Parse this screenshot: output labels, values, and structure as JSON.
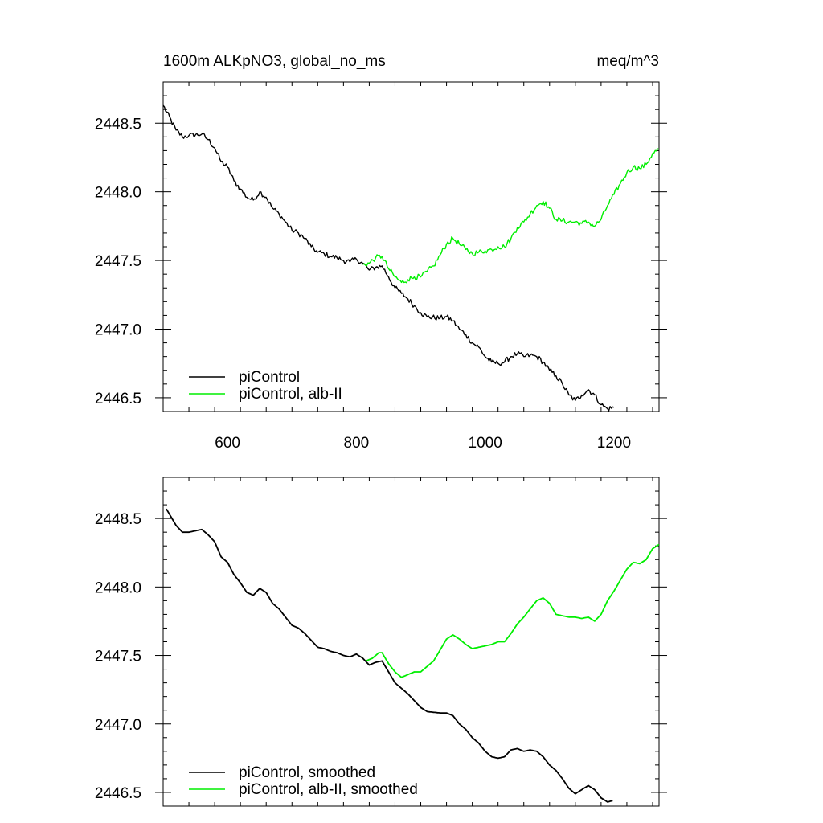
{
  "figure": {
    "title_left": "1600m ALKpNO3, global_no_ms",
    "title_right": "meq/m^3"
  },
  "colors": {
    "piControl": "#000000",
    "alb_II": "#00ee00"
  },
  "chart_data": [
    {
      "type": "line",
      "xlim": [
        500,
        1270
      ],
      "ylim": [
        2446.4,
        2448.8
      ],
      "xticks": [
        600,
        800,
        1000,
        1200
      ],
      "xtick_labels": [
        "600",
        "800",
        "1000",
        "1200"
      ],
      "yticks": [
        2446.5,
        2447.0,
        2447.5,
        2448.0,
        2448.5
      ],
      "ytick_labels": [
        "2446.5",
        "2447.0",
        "2447.5",
        "2448.0",
        "2448.5"
      ],
      "legend_position": "bottom-left",
      "series": [
        {
          "name": "piControl",
          "color": "#000000",
          "noise": 0.02,
          "points": [
            [
              500,
              2448.63
            ],
            [
              520,
              2448.45
            ],
            [
              530,
              2448.4
            ],
            [
              540,
              2448.41
            ],
            [
              560,
              2448.42
            ],
            [
              570,
              2448.38
            ],
            [
              580,
              2448.32
            ],
            [
              590,
              2448.22
            ],
            [
              600,
              2448.18
            ],
            [
              610,
              2448.08
            ],
            [
              620,
              2448.02
            ],
            [
              630,
              2447.96
            ],
            [
              640,
              2447.94
            ],
            [
              650,
              2448.0
            ],
            [
              660,
              2447.96
            ],
            [
              670,
              2447.88
            ],
            [
              680,
              2447.84
            ],
            [
              690,
              2447.78
            ],
            [
              700,
              2447.72
            ],
            [
              710,
              2447.7
            ],
            [
              720,
              2447.66
            ],
            [
              730,
              2447.6
            ],
            [
              740,
              2447.56
            ],
            [
              750,
              2447.55
            ],
            [
              760,
              2447.53
            ],
            [
              770,
              2447.52
            ],
            [
              780,
              2447.5
            ],
            [
              790,
              2447.49
            ],
            [
              800,
              2447.51
            ],
            [
              810,
              2447.48
            ],
            [
              820,
              2447.43
            ],
            [
              830,
              2447.45
            ],
            [
              840,
              2447.46
            ],
            [
              850,
              2447.38
            ],
            [
              860,
              2447.3
            ],
            [
              870,
              2447.26
            ],
            [
              880,
              2447.22
            ],
            [
              890,
              2447.17
            ],
            [
              900,
              2447.12
            ],
            [
              910,
              2447.09
            ],
            [
              930,
              2447.08
            ],
            [
              940,
              2447.09
            ],
            [
              950,
              2447.06
            ],
            [
              960,
              2447.0
            ],
            [
              970,
              2446.96
            ],
            [
              980,
              2446.9
            ],
            [
              990,
              2446.87
            ],
            [
              1000,
              2446.8
            ],
            [
              1010,
              2446.76
            ],
            [
              1020,
              2446.75
            ],
            [
              1030,
              2446.76
            ],
            [
              1040,
              2446.8
            ],
            [
              1050,
              2446.82
            ],
            [
              1060,
              2446.8
            ],
            [
              1070,
              2446.81
            ],
            [
              1080,
              2446.8
            ],
            [
              1090,
              2446.76
            ],
            [
              1100,
              2446.7
            ],
            [
              1110,
              2446.66
            ],
            [
              1120,
              2446.6
            ],
            [
              1130,
              2446.52
            ],
            [
              1140,
              2446.48
            ],
            [
              1150,
              2446.52
            ],
            [
              1160,
              2446.56
            ],
            [
              1170,
              2446.52
            ],
            [
              1180,
              2446.45
            ],
            [
              1190,
              2446.42
            ],
            [
              1200,
              2446.43
            ]
          ]
        },
        {
          "name": "piControl, alb-II",
          "color": "#00ee00",
          "noise": 0.02,
          "points": [
            [
              810,
              2447.47
            ],
            [
              820,
              2447.48
            ],
            [
              830,
              2447.52
            ],
            [
              840,
              2447.53
            ],
            [
              850,
              2447.44
            ],
            [
              860,
              2447.38
            ],
            [
              870,
              2447.34
            ],
            [
              880,
              2447.36
            ],
            [
              890,
              2447.38
            ],
            [
              900,
              2447.38
            ],
            [
              910,
              2447.42
            ],
            [
              920,
              2447.46
            ],
            [
              930,
              2447.54
            ],
            [
              940,
              2447.62
            ],
            [
              950,
              2447.66
            ],
            [
              960,
              2447.62
            ],
            [
              970,
              2447.58
            ],
            [
              980,
              2447.55
            ],
            [
              990,
              2447.56
            ],
            [
              1000,
              2447.57
            ],
            [
              1010,
              2447.58
            ],
            [
              1020,
              2447.6
            ],
            [
              1030,
              2447.6
            ],
            [
              1040,
              2447.66
            ],
            [
              1050,
              2447.74
            ],
            [
              1060,
              2447.78
            ],
            [
              1070,
              2447.84
            ],
            [
              1080,
              2447.9
            ],
            [
              1090,
              2447.93
            ],
            [
              1100,
              2447.88
            ],
            [
              1110,
              2447.8
            ],
            [
              1120,
              2447.79
            ],
            [
              1130,
              2447.78
            ],
            [
              1140,
              2447.78
            ],
            [
              1150,
              2447.77
            ],
            [
              1160,
              2447.78
            ],
            [
              1170,
              2447.75
            ],
            [
              1180,
              2447.8
            ],
            [
              1190,
              2447.9
            ],
            [
              1200,
              2447.98
            ],
            [
              1210,
              2448.06
            ],
            [
              1220,
              2448.14
            ],
            [
              1230,
              2448.18
            ],
            [
              1240,
              2448.17
            ],
            [
              1250,
              2448.2
            ],
            [
              1260,
              2448.28
            ],
            [
              1270,
              2448.31
            ]
          ]
        }
      ]
    },
    {
      "type": "line",
      "xlim": [
        500,
        1270
      ],
      "ylim": [
        2446.4,
        2448.8
      ],
      "xticks": [
        600,
        800,
        1000,
        1200
      ],
      "xtick_labels": [],
      "yticks": [
        2446.5,
        2447.0,
        2447.5,
        2448.0,
        2448.5
      ],
      "ytick_labels": [
        "2446.5",
        "2447.0",
        "2447.5",
        "2448.0",
        "2448.5"
      ],
      "legend_position": "bottom-left",
      "series": [
        {
          "name": "piControl, smoothed",
          "color": "#000000",
          "noise": 0,
          "points": [
            [
              505,
              2448.57
            ],
            [
              520,
              2448.45
            ],
            [
              530,
              2448.4
            ],
            [
              540,
              2448.4
            ],
            [
              560,
              2448.42
            ],
            [
              570,
              2448.38
            ],
            [
              580,
              2448.33
            ],
            [
              590,
              2448.22
            ],
            [
              600,
              2448.18
            ],
            [
              610,
              2448.09
            ],
            [
              620,
              2448.03
            ],
            [
              630,
              2447.96
            ],
            [
              640,
              2447.94
            ],
            [
              650,
              2447.99
            ],
            [
              660,
              2447.96
            ],
            [
              670,
              2447.88
            ],
            [
              680,
              2447.84
            ],
            [
              690,
              2447.78
            ],
            [
              700,
              2447.72
            ],
            [
              710,
              2447.7
            ],
            [
              720,
              2447.66
            ],
            [
              730,
              2447.61
            ],
            [
              740,
              2447.56
            ],
            [
              750,
              2447.55
            ],
            [
              760,
              2447.53
            ],
            [
              770,
              2447.52
            ],
            [
              780,
              2447.5
            ],
            [
              790,
              2447.49
            ],
            [
              800,
              2447.51
            ],
            [
              810,
              2447.48
            ],
            [
              820,
              2447.43
            ],
            [
              830,
              2447.45
            ],
            [
              840,
              2447.46
            ],
            [
              850,
              2447.38
            ],
            [
              860,
              2447.3
            ],
            [
              870,
              2447.26
            ],
            [
              880,
              2447.22
            ],
            [
              890,
              2447.17
            ],
            [
              900,
              2447.12
            ],
            [
              910,
              2447.09
            ],
            [
              930,
              2447.08
            ],
            [
              940,
              2447.08
            ],
            [
              950,
              2447.06
            ],
            [
              960,
              2447.0
            ],
            [
              970,
              2446.96
            ],
            [
              980,
              2446.9
            ],
            [
              990,
              2446.86
            ],
            [
              1000,
              2446.8
            ],
            [
              1010,
              2446.76
            ],
            [
              1020,
              2446.75
            ],
            [
              1030,
              2446.76
            ],
            [
              1040,
              2446.81
            ],
            [
              1050,
              2446.82
            ],
            [
              1060,
              2446.8
            ],
            [
              1070,
              2446.81
            ],
            [
              1080,
              2446.8
            ],
            [
              1090,
              2446.76
            ],
            [
              1100,
              2446.7
            ],
            [
              1110,
              2446.66
            ],
            [
              1120,
              2446.6
            ],
            [
              1130,
              2446.53
            ],
            [
              1140,
              2446.49
            ],
            [
              1150,
              2446.52
            ],
            [
              1160,
              2446.55
            ],
            [
              1170,
              2446.52
            ],
            [
              1180,
              2446.46
            ],
            [
              1190,
              2446.43
            ],
            [
              1198,
              2446.44
            ]
          ]
        },
        {
          "name": "piControl, alb-II, smoothed",
          "color": "#00ee00",
          "noise": 0,
          "points": [
            [
              815,
              2447.46
            ],
            [
              825,
              2447.48
            ],
            [
              835,
              2447.52
            ],
            [
              840,
              2447.52
            ],
            [
              850,
              2447.44
            ],
            [
              860,
              2447.38
            ],
            [
              870,
              2447.34
            ],
            [
              880,
              2447.36
            ],
            [
              890,
              2447.38
            ],
            [
              900,
              2447.38
            ],
            [
              910,
              2447.42
            ],
            [
              920,
              2447.46
            ],
            [
              930,
              2447.54
            ],
            [
              940,
              2447.62
            ],
            [
              950,
              2447.65
            ],
            [
              960,
              2447.62
            ],
            [
              970,
              2447.58
            ],
            [
              980,
              2447.55
            ],
            [
              990,
              2447.56
            ],
            [
              1000,
              2447.57
            ],
            [
              1010,
              2447.58
            ],
            [
              1020,
              2447.6
            ],
            [
              1030,
              2447.6
            ],
            [
              1040,
              2447.66
            ],
            [
              1050,
              2447.73
            ],
            [
              1060,
              2447.78
            ],
            [
              1070,
              2447.84
            ],
            [
              1080,
              2447.9
            ],
            [
              1090,
              2447.92
            ],
            [
              1100,
              2447.88
            ],
            [
              1110,
              2447.8
            ],
            [
              1120,
              2447.79
            ],
            [
              1130,
              2447.78
            ],
            [
              1140,
              2447.78
            ],
            [
              1150,
              2447.77
            ],
            [
              1160,
              2447.78
            ],
            [
              1170,
              2447.75
            ],
            [
              1180,
              2447.8
            ],
            [
              1190,
              2447.9
            ],
            [
              1200,
              2447.97
            ],
            [
              1210,
              2448.05
            ],
            [
              1220,
              2448.13
            ],
            [
              1230,
              2448.18
            ],
            [
              1240,
              2448.17
            ],
            [
              1250,
              2448.2
            ],
            [
              1260,
              2448.28
            ],
            [
              1270,
              2448.31
            ]
          ]
        }
      ]
    }
  ]
}
